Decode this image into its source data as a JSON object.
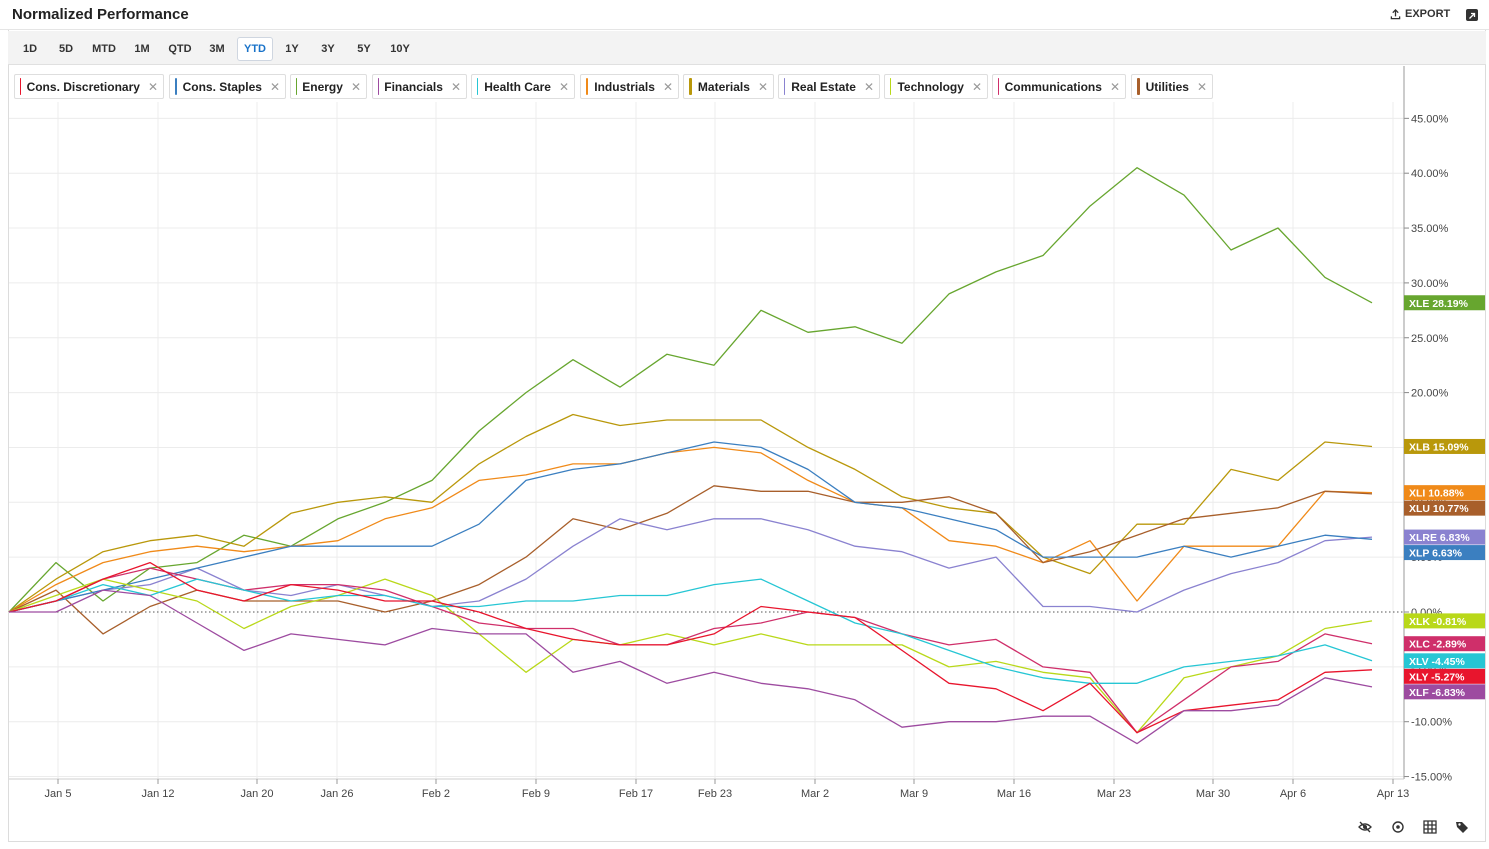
{
  "header": {
    "title": "Normalized Performance",
    "export_label": "EXPORT",
    "export_icon": "upload-icon",
    "expand_icon": "expand-icon"
  },
  "timeframes": [
    {
      "label": "1D",
      "active": false
    },
    {
      "label": "5D",
      "active": false
    },
    {
      "label": "MTD",
      "active": false
    },
    {
      "label": "1M",
      "active": false
    },
    {
      "label": "QTD",
      "active": false
    },
    {
      "label": "3M",
      "active": false
    },
    {
      "label": "YTD",
      "active": true
    },
    {
      "label": "1Y",
      "active": false
    },
    {
      "label": "3Y",
      "active": false
    },
    {
      "label": "5Y",
      "active": false
    },
    {
      "label": "10Y",
      "active": false
    }
  ],
  "legend": [
    {
      "label": "Cons. Discretionary",
      "color": "#e8152d"
    },
    {
      "label": "Cons. Staples",
      "color": "#3b7fc0"
    },
    {
      "label": "Energy",
      "color": "#67a62f"
    },
    {
      "label": "Financials",
      "color": "#9d4ba0"
    },
    {
      "label": "Health Care",
      "color": "#26c6d4"
    },
    {
      "label": "Industrials",
      "color": "#f08a19"
    },
    {
      "label": "Materials",
      "color": "#b9980b"
    },
    {
      "label": "Real Estate",
      "color": "#8a82d0"
    },
    {
      "label": "Technology",
      "color": "#b9d819"
    },
    {
      "label": "Communications",
      "color": "#cf2f6a"
    },
    {
      "label": "Utilities",
      "color": "#a85f2b"
    }
  ],
  "footer_icons": [
    "hide-icon",
    "reset-zoom-icon",
    "grid-icon",
    "tag-icon"
  ],
  "chart_data": {
    "type": "line",
    "x_ticks": [
      "Jan 5",
      "Jan 12",
      "Jan 20",
      "Jan 26",
      "Feb 2",
      "Feb 9",
      "Feb 17",
      "Feb 23",
      "Mar 2",
      "Mar 9",
      "Mar 16",
      "Mar 23",
      "Mar 30",
      "Apr 6",
      "Apr 13"
    ],
    "y_ticks": [
      "45.00%",
      "40.00%",
      "35.00%",
      "30.00%",
      "25.00%",
      "20.00%",
      "15.00%",
      "10.00%",
      "5.00%",
      "0.00%",
      "-5.00%",
      "-10.00%",
      "-15.00%"
    ],
    "y_tick_values": [
      45,
      40,
      35,
      30,
      25,
      20,
      15,
      10,
      5,
      0,
      -5,
      -10,
      -15
    ],
    "ylim": [
      -15,
      49
    ],
    "series": [
      {
        "ticker": "XLE",
        "label": "XLE  28.19%",
        "color": "#67a62f",
        "end": 28.19,
        "values": [
          0,
          4.5,
          1,
          4,
          4.5,
          7,
          6,
          8.5,
          10,
          12,
          16.5,
          20,
          23,
          20.5,
          23.5,
          22.5,
          27.5,
          25.5,
          26,
          24.5,
          29,
          31,
          32.5,
          37,
          40.5,
          38,
          33,
          35,
          30.5,
          28.19
        ]
      },
      {
        "ticker": "XLB",
        "label": "XLB  15.09%",
        "color": "#b9980b",
        "end": 15.09,
        "values": [
          0,
          3,
          5.5,
          6.5,
          7,
          6,
          9,
          10,
          10.5,
          10,
          13.5,
          16,
          18,
          17,
          17.5,
          17.5,
          17.5,
          15,
          13,
          10.5,
          9.5,
          9,
          5,
          3.5,
          8,
          8,
          13,
          12,
          15.5,
          15.09
        ]
      },
      {
        "ticker": "XLI",
        "label": "XLI  10.88%",
        "color": "#f08a19",
        "end": 10.88,
        "values": [
          0,
          2.5,
          4.5,
          5.5,
          6,
          5.5,
          6,
          6.5,
          8.5,
          9.5,
          12,
          12.5,
          13.5,
          13.5,
          14.5,
          15,
          14.5,
          12,
          10,
          9.5,
          6.5,
          6,
          4.5,
          6.5,
          1,
          6,
          6,
          6,
          11,
          10.88
        ]
      },
      {
        "ticker": "XLU",
        "label": "XLU  10.77%",
        "color": "#a85f2b",
        "end": 10.77,
        "values": [
          0,
          2,
          -2,
          0.5,
          2,
          1,
          1,
          1,
          0,
          1,
          2.5,
          5,
          8.5,
          7.5,
          9,
          11.5,
          11,
          11,
          10,
          10,
          10.5,
          9,
          4.5,
          5.5,
          7,
          8.5,
          9,
          9.5,
          11,
          10.77
        ]
      },
      {
        "ticker": "XLRE",
        "label": "XLRE  6.83%",
        "color": "#8a82d0",
        "end": 6.83,
        "values": [
          0,
          1,
          2,
          2.5,
          4,
          2,
          1.5,
          2.5,
          1.5,
          0.5,
          1,
          3,
          6,
          8.5,
          7.5,
          8.5,
          8.5,
          7.5,
          6,
          5.5,
          4,
          5,
          0.5,
          0.5,
          0,
          2,
          3.5,
          4.5,
          6.5,
          6.83
        ]
      },
      {
        "ticker": "XLP",
        "label": "XLP  6.63%",
        "color": "#3b7fc0",
        "end": 6.63,
        "values": [
          0,
          1,
          2,
          3,
          4,
          5,
          6,
          6,
          6,
          6,
          8,
          12,
          13,
          13.5,
          14.5,
          15.5,
          15,
          13,
          10,
          9.5,
          8.5,
          7.5,
          5,
          5,
          5,
          6,
          5,
          6,
          7,
          6.63
        ]
      },
      {
        "ticker": "XLK",
        "label": "XLK  -0.81%",
        "color": "#b9d819",
        "end": -0.81,
        "values": [
          0,
          1.5,
          3,
          2,
          1,
          -1.5,
          0.5,
          1.5,
          3,
          1.5,
          -2,
          -5.5,
          -2.5,
          -3,
          -2,
          -3,
          -2,
          -3,
          -3,
          -3,
          -5,
          -4.5,
          -5.5,
          -6,
          -11,
          -6,
          -5,
          -4,
          -1.5,
          -0.81
        ]
      },
      {
        "ticker": "XLC",
        "label": "XLC  -2.89%",
        "color": "#cf2f6a",
        "end": -2.89,
        "values": [
          0,
          1,
          3,
          4,
          3,
          2,
          2.5,
          2.5,
          2,
          0.5,
          -1,
          -1.5,
          -1.5,
          -3,
          -3,
          -1.5,
          -1,
          0,
          -0.5,
          -2,
          -3,
          -2.5,
          -5,
          -5.5,
          -11,
          -8,
          -5,
          -4.5,
          -2,
          -2.89
        ]
      },
      {
        "ticker": "XLV",
        "label": "XLV  -4.45%",
        "color": "#26c6d4",
        "end": -4.45,
        "values": [
          0,
          1,
          2.5,
          1.5,
          3,
          2,
          1,
          1.5,
          1.5,
          0.5,
          0.5,
          1,
          1,
          1.5,
          1.5,
          2.5,
          3,
          1,
          -1,
          -2,
          -3.5,
          -5,
          -6,
          -6.5,
          -6.5,
          -5,
          -4.5,
          -4,
          -3,
          -4.45
        ]
      },
      {
        "ticker": "XLY",
        "label": "XLY  -5.27%",
        "color": "#e8152d",
        "end": -5.27,
        "values": [
          0,
          1,
          3,
          4.5,
          2,
          1,
          2.5,
          2,
          1,
          1,
          0,
          -1.5,
          -2.5,
          -3,
          -3,
          -2,
          0.5,
          0,
          -0.5,
          -3.5,
          -6.5,
          -7,
          -9,
          -6.5,
          -11,
          -9,
          -8.5,
          -8,
          -5.5,
          -5.27
        ]
      },
      {
        "ticker": "XLF",
        "label": "XLF  -6.83%",
        "color": "#9d4ba0",
        "end": -6.83,
        "values": [
          0,
          0,
          2,
          1.5,
          -1,
          -3.5,
          -2,
          -2.5,
          -3,
          -1.5,
          -2,
          -2,
          -5.5,
          -4.5,
          -6.5,
          -5.5,
          -6.5,
          -7,
          -8,
          -10.5,
          -10,
          -10,
          -9.5,
          -9.5,
          -12,
          -9,
          -9,
          -8.5,
          -6,
          -6.83
        ]
      }
    ]
  }
}
